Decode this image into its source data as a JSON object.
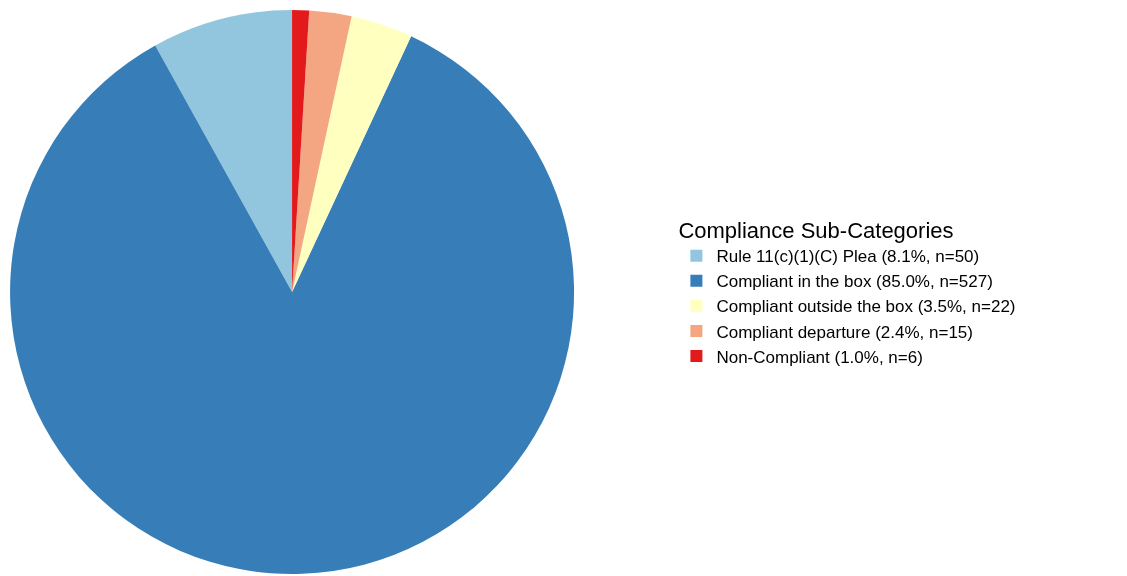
{
  "chart_data": {
    "type": "pie",
    "legend_title": "Compliance Sub-Categories",
    "legend": "right",
    "categories": [
      "Rule 11(c)(1)(C) Plea (8.1%, n=50)",
      "Compliant in the box (85.0%, n=527)",
      "Compliant outside the box (3.5%, n=22)",
      "Compliant departure (2.4%, n=15)",
      "Non-Compliant (1.0%, n=6)"
    ],
    "values": [
      50,
      527,
      22,
      15,
      6
    ],
    "colors": [
      "#92c5de",
      "#377eb8",
      "#ffffbf",
      "#f4a582",
      "#e31a1c"
    ]
  }
}
